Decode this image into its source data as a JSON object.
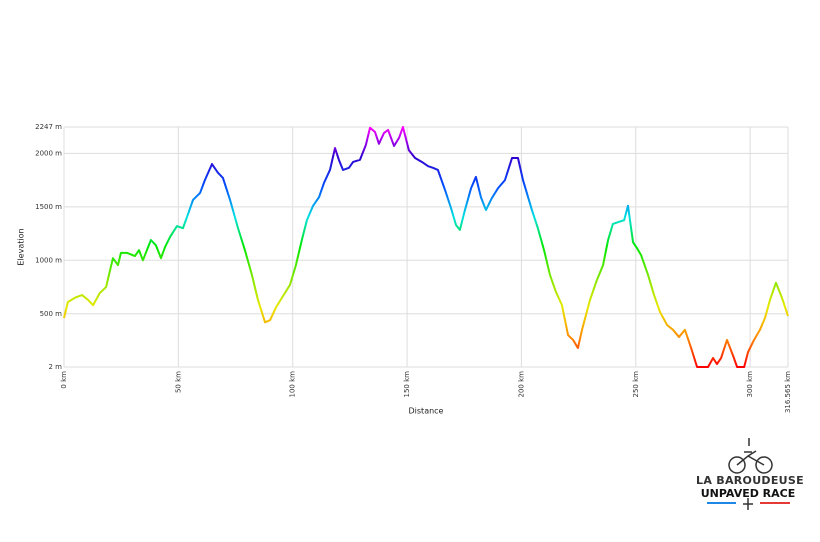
{
  "chart_data": {
    "type": "line",
    "xlabel": "Distance",
    "ylabel": "Elevation",
    "xlim": [
      0,
      316.565
    ],
    "ylim": [
      2,
      2247
    ],
    "xticks": [
      {
        "value": 0,
        "label": "0 km"
      },
      {
        "value": 50,
        "label": "50 km"
      },
      {
        "value": 100,
        "label": "100 km"
      },
      {
        "value": 150,
        "label": "150 km"
      },
      {
        "value": 200,
        "label": "200 km"
      },
      {
        "value": 250,
        "label": "250 km"
      },
      {
        "value": 300,
        "label": "300 km"
      },
      {
        "value": 316.565,
        "label": "316.565 km"
      }
    ],
    "yticks": [
      {
        "value": 2,
        "label": "2 m"
      },
      {
        "value": 500,
        "label": "500 m"
      },
      {
        "value": 1000,
        "label": "1000 m"
      },
      {
        "value": 1500,
        "label": "1500 m"
      },
      {
        "value": 2000,
        "label": "2000 m"
      },
      {
        "value": 2247,
        "label": "2247 m"
      }
    ],
    "grid": true,
    "color_scale": [
      "#ff0000",
      "#ff8c00",
      "#e8e800",
      "#7de800",
      "#00e800",
      "#00e0e0",
      "#0050ff",
      "#3000d0",
      "#ff00ff"
    ],
    "x": [
      0,
      1.7,
      4.8,
      7.9,
      10.5,
      12.7,
      15.7,
      18.4,
      21.4,
      23.6,
      24.9,
      27.5,
      31.0,
      32.8,
      34.5,
      38.0,
      40.2,
      42.4,
      44.2,
      46.4,
      49.4,
      52.0,
      54.2,
      56.4,
      59.5,
      61.6,
      64.7,
      67.3,
      69.5,
      72.6,
      76.1,
      79.1,
      82.2,
      84.8,
      87.9,
      90.1,
      92.7,
      95.3,
      98.8,
      101.4,
      104.0,
      106.2,
      108.9,
      111.5,
      113.7,
      116.3,
      118.5,
      120.2,
      122.0,
      124.6,
      126.4,
      129.4,
      132.0,
      133.8,
      136.0,
      137.7,
      139.9,
      141.7,
      144.3,
      146.5,
      148.2,
      150.8,
      153.5,
      156.5,
      159.2,
      161.3,
      163.5,
      166.6,
      169.2,
      171.4,
      173.1,
      175.3,
      178.0,
      180.1,
      182.3,
      184.5,
      187.1,
      189.8,
      192.8,
      195.9,
      198.5,
      200.7,
      204.6,
      207.2,
      209.9,
      212.5,
      215.1,
      217.7,
      220.4,
      222.6,
      224.7,
      226.5,
      230.0,
      233.0,
      235.7,
      237.9,
      240.0,
      242.7,
      244.9,
      246.6,
      248.8,
      250.5,
      252.3,
      255.4,
      258.0,
      260.6,
      263.7,
      266.3,
      268.9,
      271.5,
      274.2,
      276.8,
      279.8,
      281.6,
      283.8,
      285.5,
      287.3,
      289.9,
      292.6,
      294.3,
      297.4,
      299.1,
      301.7,
      304.3,
      306.5,
      308.7,
      311.3,
      313.9,
      316.565
    ],
    "values": [
      460,
      610,
      650,
      675,
      630,
      580,
      695,
      750,
      1020,
      955,
      1070,
      1070,
      1040,
      1095,
      1000,
      1190,
      1140,
      1020,
      1125,
      1220,
      1320,
      1300,
      1430,
      1565,
      1630,
      1750,
      1900,
      1820,
      1770,
      1565,
      1300,
      1095,
      860,
      630,
      420,
      440,
      560,
      650,
      770,
      955,
      1190,
      1375,
      1510,
      1590,
      1725,
      1845,
      2050,
      1940,
      1845,
      1865,
      1920,
      1940,
      2080,
      2240,
      2200,
      2090,
      2190,
      2220,
      2070,
      2145,
      2247,
      2030,
      1957,
      1920,
      1880,
      1865,
      1845,
      1658,
      1490,
      1330,
      1285,
      1470,
      1675,
      1780,
      1590,
      1470,
      1583,
      1675,
      1750,
      1957,
      1957,
      1750,
      1470,
      1300,
      1095,
      862,
      704,
      582,
      300,
      255,
      180,
      350,
      630,
      815,
      955,
      1190,
      1340,
      1360,
      1375,
      1510,
      1170,
      1115,
      1050,
      862,
      675,
      516,
      395,
      350,
      283,
      350,
      180,
      2,
      2,
      2,
      86,
      30,
      86,
      255,
      105,
      2,
      2,
      142,
      255,
      350,
      460,
      630,
      790,
      650,
      480
    ]
  },
  "logo": {
    "line1": "LA BAROUDEUSE",
    "line2": "UNPAVED RACE"
  }
}
